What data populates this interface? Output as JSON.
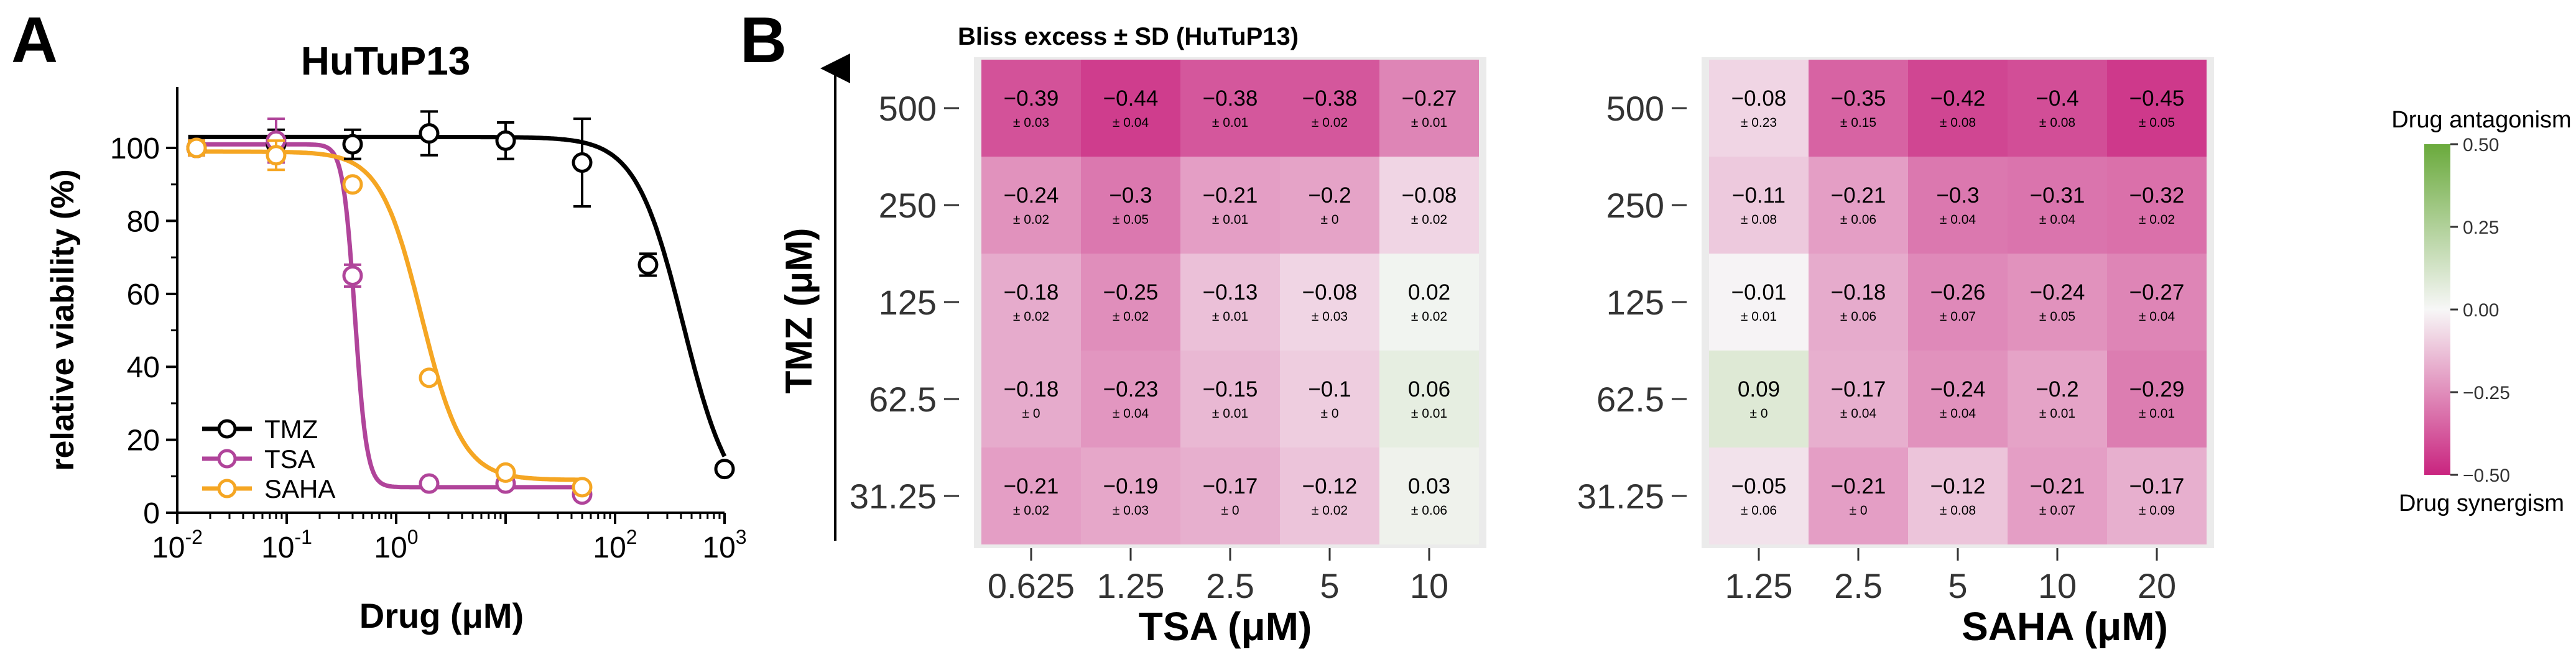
{
  "panels": {
    "a": {
      "letter": "A"
    },
    "b": {
      "letter": "B"
    }
  },
  "colors": {
    "TMZ": "#000000",
    "TSA": "#b0449a",
    "SAHA": "#f5a623",
    "antagonism": "#6aaa3c",
    "neutral": "#f7f7f7",
    "synergism": "#c9247f"
  },
  "chart_data": [
    {
      "type": "line",
      "title": "HuTuP13",
      "xlabel": "Drug (μM)",
      "ylabel": "relative viability (%)",
      "xscale": "log",
      "xlim": [
        0.01,
        1000
      ],
      "ylim": [
        0,
        115
      ],
      "xticks": [
        {
          "v": 0.01,
          "b": "10",
          "e": "-2"
        },
        {
          "v": 0.1,
          "b": "10",
          "e": "-1"
        },
        {
          "v": 1,
          "b": "10",
          "e": "0"
        },
        {
          "v": 100,
          "b": "10",
          "e": "2"
        },
        {
          "v": 1000,
          "b": "10",
          "e": "3"
        }
      ],
      "yticks": [
        "0",
        "20",
        "40",
        "60",
        "80",
        "100"
      ],
      "legend_position": "bottom-left",
      "series": [
        {
          "name": "TMZ",
          "points": [
            {
              "x": 0.015,
              "y": 100,
              "err": 2
            },
            {
              "x": 0.08,
              "y": 101,
              "err": 4
            },
            {
              "x": 0.4,
              "y": 101,
              "err": 4
            },
            {
              "x": 2,
              "y": 104,
              "err": 6
            },
            {
              "x": 10,
              "y": 102,
              "err": 5
            },
            {
              "x": 50,
              "y": 96,
              "err": 12
            },
            {
              "x": 200,
              "y": 68,
              "err": 3
            },
            {
              "x": 1000,
              "y": 12,
              "err": 1
            }
          ],
          "fit": {
            "top": 103,
            "bottom": 0,
            "ec50": 420,
            "hill": 2.0
          }
        },
        {
          "name": "TSA",
          "points": [
            {
              "x": 0.015,
              "y": 100,
              "err": 2
            },
            {
              "x": 0.08,
              "y": 102,
              "err": 6
            },
            {
              "x": 0.4,
              "y": 65,
              "err": 3
            },
            {
              "x": 2,
              "y": 8,
              "err": 1
            },
            {
              "x": 10,
              "y": 8,
              "err": 1
            },
            {
              "x": 50,
              "y": 5,
              "err": 1
            }
          ],
          "fit": {
            "top": 101,
            "bottom": 7,
            "ec50": 0.42,
            "hill": 8.0
          }
        },
        {
          "name": "SAHA",
          "points": [
            {
              "x": 0.015,
              "y": 100,
              "err": 2
            },
            {
              "x": 0.08,
              "y": 98,
              "err": 4
            },
            {
              "x": 0.4,
              "y": 90,
              "err": 1
            },
            {
              "x": 2,
              "y": 37,
              "err": 1
            },
            {
              "x": 10,
              "y": 11,
              "err": 1
            },
            {
              "x": 50,
              "y": 7,
              "err": 1
            }
          ],
          "fit": {
            "top": 99,
            "bottom": 9,
            "ec50": 1.7,
            "hill": 2.3
          }
        }
      ]
    },
    {
      "type": "heatmap",
      "title": "Bliss excess ± SD (HuTuP13)",
      "ylabel": "TMZ (μM)",
      "rows": [
        "500",
        "250",
        "125",
        "62.5",
        "31.25"
      ],
      "colorbar": {
        "min": -0.5,
        "max": 0.5,
        "ticks": [
          "0.50",
          "0.25",
          "0.00",
          "−0.25",
          "−0.50"
        ],
        "top_label": "Drug antagonism",
        "bottom_label": "Drug synergism"
      },
      "panels": [
        {
          "xlabel": "TSA (μM)",
          "cols": [
            "0.625",
            "1.25",
            "2.5",
            "5",
            "10"
          ],
          "values": [
            [
              -0.39,
              -0.44,
              -0.38,
              -0.38,
              -0.27
            ],
            [
              -0.24,
              -0.3,
              -0.21,
              -0.2,
              -0.08
            ],
            [
              -0.18,
              -0.25,
              -0.13,
              -0.08,
              0.02
            ],
            [
              -0.18,
              -0.23,
              -0.15,
              -0.1,
              0.06
            ],
            [
              -0.21,
              -0.19,
              -0.17,
              -0.12,
              0.03
            ]
          ],
          "value_labels": [
            [
              "−0.39",
              "−0.44",
              "−0.38",
              "−0.38",
              "−0.27"
            ],
            [
              "−0.24",
              "−0.3",
              "−0.21",
              "−0.2",
              "−0.08"
            ],
            [
              "−0.18",
              "−0.25",
              "−0.13",
              "−0.08",
              "0.02"
            ],
            [
              "−0.18",
              "−0.23",
              "−0.15",
              "−0.1",
              "0.06"
            ],
            [
              "−0.21",
              "−0.19",
              "−0.17",
              "−0.12",
              "0.03"
            ]
          ],
          "sd_labels": [
            [
              "± 0.03",
              "± 0.04",
              "± 0.01",
              "± 0.02",
              "± 0.01"
            ],
            [
              "± 0.02",
              "± 0.05",
              "± 0.01",
              "± 0",
              "± 0.02"
            ],
            [
              "± 0.02",
              "± 0.02",
              "± 0.01",
              "± 0.03",
              "± 0.02"
            ],
            [
              "± 0",
              "± 0.04",
              "± 0.01",
              "± 0",
              "± 0.01"
            ],
            [
              "± 0.02",
              "± 0.03",
              "± 0",
              "± 0.02",
              "± 0.06"
            ]
          ]
        },
        {
          "xlabel": "SAHA (μM)",
          "cols": [
            "1.25",
            "2.5",
            "5",
            "10",
            "20"
          ],
          "values": [
            [
              -0.08,
              -0.35,
              -0.42,
              -0.4,
              -0.45
            ],
            [
              -0.11,
              -0.21,
              -0.3,
              -0.31,
              -0.32
            ],
            [
              -0.01,
              -0.18,
              -0.26,
              -0.24,
              -0.27
            ],
            [
              0.09,
              -0.17,
              -0.24,
              -0.2,
              -0.29
            ],
            [
              -0.05,
              -0.21,
              -0.12,
              -0.21,
              -0.17
            ]
          ],
          "value_labels": [
            [
              "−0.08",
              "−0.35",
              "−0.42",
              "−0.4",
              "−0.45"
            ],
            [
              "−0.11",
              "−0.21",
              "−0.3",
              "−0.31",
              "−0.32"
            ],
            [
              "−0.01",
              "−0.18",
              "−0.26",
              "−0.24",
              "−0.27"
            ],
            [
              "0.09",
              "−0.17",
              "−0.24",
              "−0.2",
              "−0.29"
            ],
            [
              "−0.05",
              "−0.21",
              "−0.12",
              "−0.21",
              "−0.17"
            ]
          ],
          "sd_labels": [
            [
              "± 0.23",
              "± 0.15",
              "± 0.08",
              "± 0.08",
              "± 0.05"
            ],
            [
              "± 0.08",
              "± 0.06",
              "± 0.04",
              "± 0.04",
              "± 0.02"
            ],
            [
              "± 0.01",
              "± 0.06",
              "± 0.07",
              "± 0.05",
              "± 0.04"
            ],
            [
              "± 0",
              "± 0.04",
              "± 0.04",
              "± 0.01",
              "± 0.01"
            ],
            [
              "± 0.06",
              "± 0",
              "± 0.08",
              "± 0.07",
              "± 0.09"
            ]
          ]
        }
      ]
    }
  ]
}
